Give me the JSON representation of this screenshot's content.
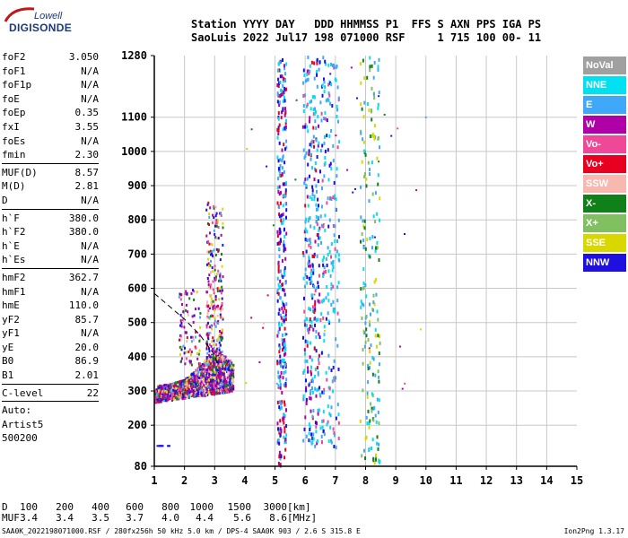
{
  "header": {
    "line1": "Station YYYY DAY   DDD HHMMSS P1  FFS S AXN PPS IGA PS",
    "line2": "SaoLuis 2022 Jul17 198 071000 RSF     1 715 100 00- 11"
  },
  "logo": {
    "top": "Lowell",
    "bottom": "DIGISONDE"
  },
  "params": [
    {
      "group": 1,
      "items": [
        {
          "name": "foF2",
          "value": "3.050"
        },
        {
          "name": "foF1",
          "value": "N/A"
        },
        {
          "name": "foF1p",
          "value": "N/A"
        },
        {
          "name": "foE",
          "value": "N/A"
        },
        {
          "name": "foEp",
          "value": "0.35"
        },
        {
          "name": "fxI",
          "value": "3.55"
        },
        {
          "name": "foEs",
          "value": "N/A"
        },
        {
          "name": "fmin",
          "value": "2.30"
        }
      ]
    },
    {
      "group": 2,
      "items": [
        {
          "name": "MUF(D)",
          "value": "8.57"
        },
        {
          "name": "M(D)",
          "value": "2.81"
        },
        {
          "name": "D",
          "value": "N/A"
        }
      ]
    },
    {
      "group": 3,
      "items": [
        {
          "name": "h`F",
          "value": "380.0"
        },
        {
          "name": "h`F2",
          "value": "380.0"
        },
        {
          "name": "h`E",
          "value": "N/A"
        },
        {
          "name": "h`Es",
          "value": "N/A"
        }
      ]
    },
    {
      "group": 4,
      "items": [
        {
          "name": "hmF2",
          "value": "362.7"
        },
        {
          "name": "hmF1",
          "value": "N/A"
        },
        {
          "name": "hmE",
          "value": "110.0"
        },
        {
          "name": "yF2",
          "value": "85.7"
        },
        {
          "name": "yF1",
          "value": "N/A"
        },
        {
          "name": "yE",
          "value": "20.0"
        },
        {
          "name": "B0",
          "value": "86.9"
        },
        {
          "name": "B1",
          "value": "2.01"
        }
      ]
    },
    {
      "group": 5,
      "items": [
        {
          "name": "C-level",
          "value": "22"
        }
      ]
    }
  ],
  "auto": [
    "Auto:",
    "Artist5",
    "500200"
  ],
  "legend": [
    {
      "label": "NoVal",
      "color": "#a0a0a0"
    },
    {
      "label": "NNE",
      "color": "#00e0f0"
    },
    {
      "label": "E",
      "color": "#40a8f8"
    },
    {
      "label": "W",
      "color": "#b000a8"
    },
    {
      "label": "Vo-",
      "color": "#f04898"
    },
    {
      "label": "Vo+",
      "color": "#e80020"
    },
    {
      "label": "SSW",
      "color": "#f8b8b0"
    },
    {
      "label": "X-",
      "color": "#108018"
    },
    {
      "label": "X+",
      "color": "#80c060"
    },
    {
      "label": "SSE",
      "color": "#d8d800"
    },
    {
      "label": "NNW",
      "color": "#2010e0"
    }
  ],
  "muf_table": {
    "d_label": "D",
    "d_values": [
      "100",
      "200",
      "400",
      "600",
      "800",
      "1000",
      "1500",
      "3000"
    ],
    "d_unit": "[km]",
    "muf_label": "MUF",
    "muf_values": [
      "3.4",
      "3.4",
      "3.5",
      "3.7",
      "4.0",
      "4.4",
      "5.6",
      "8.6"
    ],
    "muf_unit": "[MHz]"
  },
  "footer": {
    "left": "SAA0K_2022198071000.RSF / 280fx256h 50 kHz 5.0 km / DPS-4 SAA0K 903 / 2.6 S 315.8 E",
    "right": "Ion2Png 1.3.17"
  },
  "chart_data": {
    "type": "scatter",
    "x_ticks": [
      1,
      2,
      3,
      4,
      5,
      6,
      7,
      8,
      9,
      10,
      11,
      12,
      13,
      14,
      15
    ],
    "y_ticks": [
      80,
      200,
      300,
      400,
      500,
      600,
      700,
      800,
      900,
      1000,
      1100,
      1280
    ],
    "xlim": [
      1,
      15
    ],
    "ylim": [
      80,
      1280
    ],
    "grid": true,
    "legend_position": "right",
    "profile_line": {
      "style": "dashed",
      "points": [
        [
          1.0,
          585
        ],
        [
          2.0,
          510
        ],
        [
          2.5,
          465
        ],
        [
          3.0,
          405
        ],
        [
          3.1,
          380
        ]
      ]
    },
    "clusters": [
      {
        "name": "main-echo",
        "x_range": [
          1.0,
          3.6
        ],
        "y_range": [
          260,
          420
        ],
        "density": "high"
      },
      {
        "name": "main-echo-spike",
        "x_range": [
          2.6,
          3.3
        ],
        "y_range": [
          380,
          870
        ],
        "density": "medium"
      },
      {
        "name": "left-spike",
        "x_range": [
          1.8,
          2.5
        ],
        "y_range": [
          380,
          600
        ],
        "density": "low"
      },
      {
        "name": "stripe-5.1",
        "x_range": [
          5.0,
          5.35
        ],
        "y_range": [
          80,
          1280
        ],
        "density": "medium"
      },
      {
        "name": "stripe-6.1",
        "x_range": [
          5.9,
          6.4
        ],
        "y_range": [
          140,
          1280
        ],
        "density": "medium"
      },
      {
        "name": "stripe-6.8",
        "x_range": [
          6.5,
          7.1
        ],
        "y_range": [
          140,
          1280
        ],
        "density": "low"
      },
      {
        "name": "stripe-8.1",
        "x_range": [
          7.8,
          8.5
        ],
        "y_range": [
          80,
          1280
        ],
        "density": "low"
      },
      {
        "name": "low-echo-1.1",
        "x_range": [
          1.0,
          1.5
        ],
        "y_range": [
          135,
          150
        ],
        "density": "low"
      }
    ]
  }
}
